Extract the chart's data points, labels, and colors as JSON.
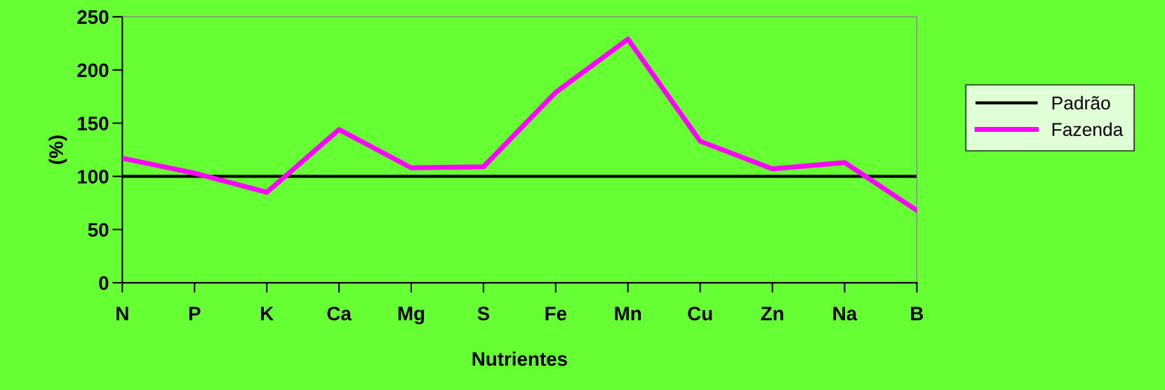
{
  "chart_data": {
    "type": "line",
    "xlabel": "Nutrientes",
    "ylabel": "(%)",
    "categories": [
      "N",
      "P",
      "K",
      "Ca",
      "Mg",
      "S",
      "Fe",
      "Mn",
      "Cu",
      "Zn",
      "Na",
      "B"
    ],
    "series": [
      {
        "name": "Padrão",
        "color": "#000000",
        "values": [
          100,
          100,
          100,
          100,
          100,
          100,
          100,
          100,
          100,
          100,
          100,
          100
        ]
      },
      {
        "name": "Fazenda",
        "color": "#ff00ff",
        "values": [
          117,
          103,
          85,
          144,
          108,
          109,
          179,
          229,
          133,
          107,
          113,
          68
        ]
      }
    ],
    "ylim": [
      0,
      250
    ],
    "yticks": [
      0,
      50,
      100,
      150,
      200,
      250
    ],
    "grid": false,
    "legend": "right",
    "marker": "none",
    "line_style": "solid"
  }
}
